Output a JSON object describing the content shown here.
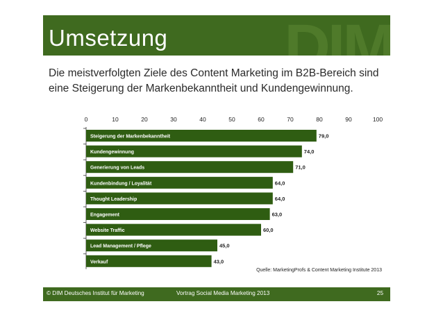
{
  "slide": {
    "title": "Umsetzung",
    "watermark": "DIM",
    "subtitle_line1": "Die meistverfolgten Ziele des Content Marketing im B2B-Bereich sind",
    "subtitle_line2": "eine Steigerung der Markenbekanntheit und Kundengewinnung."
  },
  "chart_data": {
    "type": "bar",
    "orientation": "horizontal",
    "xlim": [
      0,
      100
    ],
    "xticks": [
      0,
      10,
      20,
      30,
      40,
      50,
      60,
      70,
      80,
      90,
      100
    ],
    "tick_position": "top",
    "categories": [
      "Steigerung der Markenbekanntheit",
      "Kundengewinnung",
      "Generierung von Leads",
      "Kundenbindung / Loyalität",
      "Thought Leadership",
      "Engagement",
      "Website Traffic",
      "Lead Management / Pflege",
      "Verkauf"
    ],
    "values": [
      79,
      74,
      71,
      64,
      64,
      63,
      60,
      45,
      43
    ],
    "value_labels": [
      "79,0",
      "74,0",
      "71,0",
      "64,0",
      "64,0",
      "63,0",
      "60,0",
      "45,0",
      "43,0"
    ],
    "bar_color": "#2f5d12",
    "source": "Quelle: MarketingProfs & Content Marketing Institute 2013"
  },
  "footer": {
    "left": "© DIM Deutsches Institut für Marketing",
    "middle": "Vortrag Social Media Marketing 2013",
    "page": "25"
  }
}
